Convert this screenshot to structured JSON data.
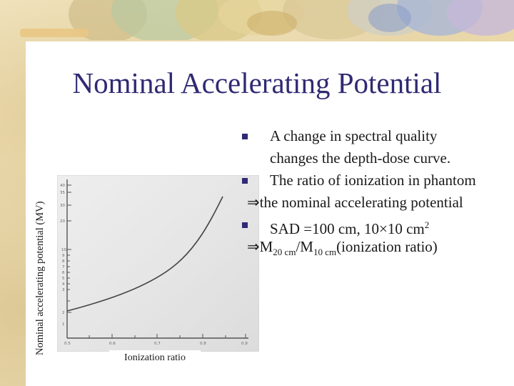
{
  "slide": {
    "title": "Nominal Accelerating Potential",
    "figure": {
      "y_axis_label": "Nominal accelerating potential (MV)",
      "x_axis_label": "Ionization ratio"
    },
    "bullets": [
      {
        "type": "bullet",
        "lines": [
          "A change in spectral quality",
          "changes the depth-dose curve."
        ]
      },
      {
        "type": "bullet",
        "lines": [
          "The ratio of ionization in phantom"
        ]
      },
      {
        "type": "implies",
        "symbol": "⇒",
        "text": "the nominal accelerating potential"
      },
      {
        "type": "bullet",
        "text_parts": {
          "pre": "SAD =100 cm, 10",
          "times": "×",
          "mid": "10 cm",
          "sup": "2"
        }
      },
      {
        "type": "implies",
        "symbol": "⇒",
        "parts": {
          "m1": "M",
          "sub1": "20 cm",
          "slash": "/M",
          "sub2": "10 cm",
          "tail": "(ionization ratio)"
        }
      }
    ],
    "colors": {
      "title": "#2f2a73",
      "bullet": "#2f2a73",
      "background": "#f1e4bf"
    }
  }
}
